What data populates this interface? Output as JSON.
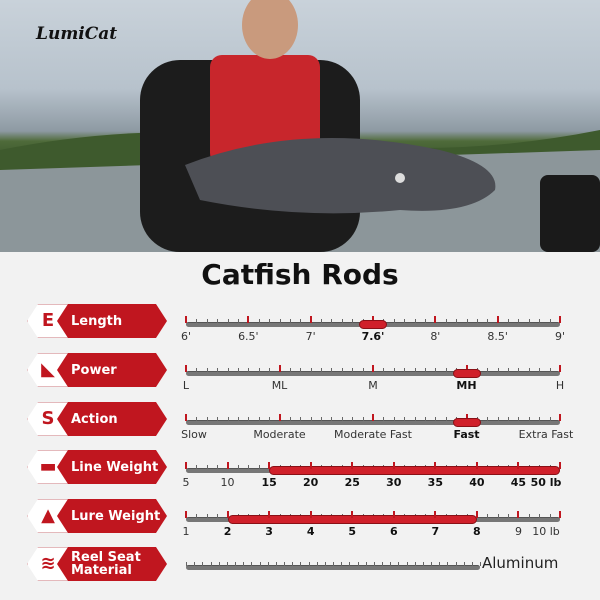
{
  "brand": {
    "logo_text": "LumiCat"
  },
  "title": "Catfish Rods",
  "accent_color": "#c0161f",
  "specs": [
    {
      "label": "Length",
      "icon": "ruler-icon",
      "ticks": [
        "6'",
        "6.5'",
        "7'",
        "7.6'",
        "8'",
        "8.5'",
        "9'"
      ],
      "marker": "7.6'",
      "bold": [
        "7.6'"
      ]
    },
    {
      "label": "Power",
      "icon": "rod-bend-icon",
      "ticks": [
        "L",
        "ML",
        "M",
        "MH",
        "H"
      ],
      "marker": "MH",
      "bold": [
        "MH"
      ]
    },
    {
      "label": "Action",
      "icon": "speed-s-icon",
      "ticks": [
        "Slow",
        "Moderate",
        "Moderate Fast",
        "Fast",
        "Extra Fast"
      ],
      "marker": "Fast",
      "bold": [
        "Fast"
      ]
    },
    {
      "label": "Line Weight",
      "icon": "dumbbell-icon",
      "ticks": [
        "5",
        "10",
        "15",
        "20",
        "25",
        "30",
        "35",
        "40",
        "45",
        "50 lb"
      ],
      "range": [
        "15",
        "50 lb"
      ],
      "bold": [
        "15",
        "20",
        "25",
        "30",
        "35",
        "40",
        "45",
        "50 lb"
      ]
    },
    {
      "label": "Lure Weight",
      "icon": "weight-icon",
      "ticks": [
        "1",
        "2",
        "3",
        "4",
        "5",
        "6",
        "7",
        "8",
        "9",
        "10 lb"
      ],
      "range": [
        "2",
        "8"
      ],
      "bold": [
        "2",
        "3",
        "4",
        "5",
        "6",
        "7",
        "8"
      ]
    },
    {
      "label": "Reel Seat Material",
      "icon": "layers-icon",
      "ticks": [],
      "value": "Aluminum"
    }
  ]
}
